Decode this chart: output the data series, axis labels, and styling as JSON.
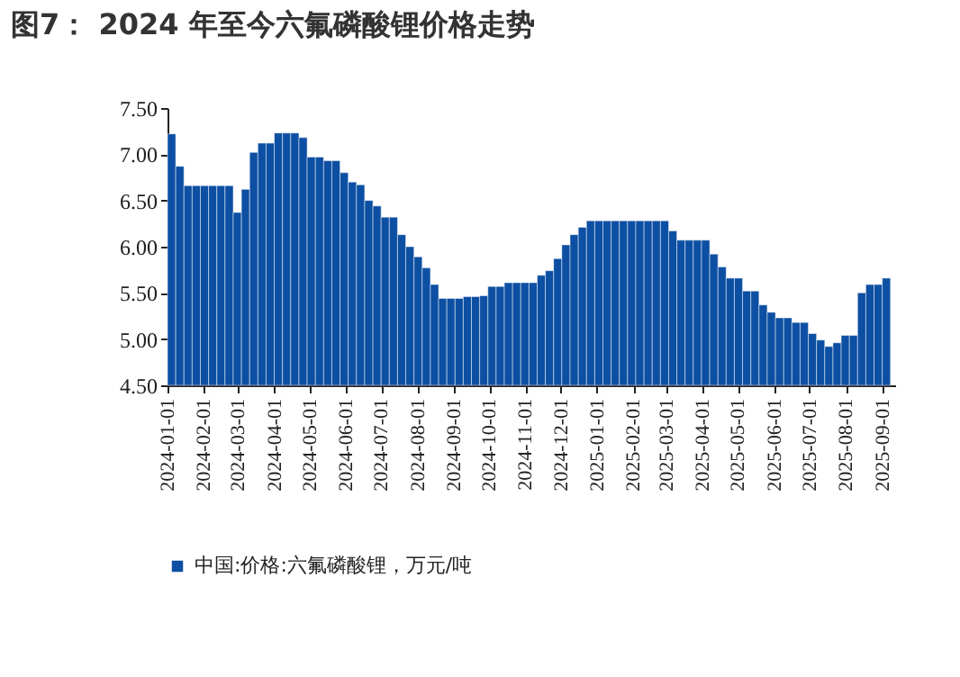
{
  "chart_data": {
    "type": "bar",
    "title": "图7： 2024 年至今六氟磷酸锂价格走势",
    "x": [
      "2024-01-01",
      "2024-01-08",
      "2024-01-15",
      "2024-01-22",
      "2024-01-29",
      "2024-02-05",
      "2024-02-12",
      "2024-02-19",
      "2024-02-26",
      "2024-03-04",
      "2024-03-11",
      "2024-03-18",
      "2024-03-25",
      "2024-04-01",
      "2024-04-08",
      "2024-04-15",
      "2024-04-22",
      "2024-04-29",
      "2024-05-06",
      "2024-05-13",
      "2024-05-20",
      "2024-05-27",
      "2024-06-03",
      "2024-06-10",
      "2024-06-17",
      "2024-06-24",
      "2024-07-01",
      "2024-07-08",
      "2024-07-15",
      "2024-07-22",
      "2024-07-29",
      "2024-08-05",
      "2024-08-12",
      "2024-08-19",
      "2024-08-26",
      "2024-09-02",
      "2024-09-09",
      "2024-09-16",
      "2024-09-23",
      "2024-09-30",
      "2024-10-07",
      "2024-10-14",
      "2024-10-21",
      "2024-10-28",
      "2024-11-04",
      "2024-11-11",
      "2024-11-18",
      "2024-11-25",
      "2024-12-02",
      "2024-12-09",
      "2024-12-16",
      "2024-12-23",
      "2024-12-30",
      "2025-01-06",
      "2025-01-13",
      "2025-01-20",
      "2025-01-27",
      "2025-02-03",
      "2025-02-10",
      "2025-02-17",
      "2025-02-24",
      "2025-03-03",
      "2025-03-10",
      "2025-03-17",
      "2025-03-24",
      "2025-03-31",
      "2025-04-07",
      "2025-04-14",
      "2025-04-21",
      "2025-04-28",
      "2025-05-05",
      "2025-05-12",
      "2025-05-19",
      "2025-05-26",
      "2025-06-02",
      "2025-06-09",
      "2025-06-16",
      "2025-06-23",
      "2025-06-30",
      "2025-07-07",
      "2025-07-14",
      "2025-07-21",
      "2025-07-28",
      "2025-08-04",
      "2025-08-11",
      "2025-08-18",
      "2025-08-25",
      "2025-09-01"
    ],
    "series": [
      {
        "name": "中国:价格:六氟磷酸锂，万元/吨",
        "color": "#0d4fa3",
        "values": [
          7.22,
          6.87,
          6.66,
          6.66,
          6.66,
          6.66,
          6.66,
          6.66,
          6.37,
          6.62,
          7.02,
          7.12,
          7.12,
          7.23,
          7.23,
          7.23,
          7.18,
          6.97,
          6.97,
          6.93,
          6.93,
          6.8,
          6.7,
          6.67,
          6.5,
          6.44,
          6.32,
          6.32,
          6.13,
          6.0,
          5.89,
          5.77,
          5.59,
          5.44,
          5.44,
          5.44,
          5.46,
          5.46,
          5.47,
          5.57,
          5.57,
          5.61,
          5.61,
          5.61,
          5.61,
          5.69,
          5.74,
          5.87,
          6.02,
          6.13,
          6.21,
          6.28,
          6.28,
          6.28,
          6.28,
          6.28,
          6.28,
          6.28,
          6.28,
          6.28,
          6.28,
          6.17,
          6.07,
          6.07,
          6.07,
          6.07,
          5.92,
          5.78,
          5.66,
          5.66,
          5.52,
          5.52,
          5.37,
          5.29,
          5.23,
          5.23,
          5.18,
          5.18,
          5.06,
          4.99,
          4.92,
          4.96,
          5.04,
          5.04,
          5.5,
          5.59,
          5.59,
          5.66
        ]
      }
    ],
    "xlim": [
      "2024-01-01",
      "2025-09-12"
    ],
    "xticks": [
      "2024-01-01",
      "2024-02-01",
      "2024-03-01",
      "2024-04-01",
      "2024-05-01",
      "2024-06-01",
      "2024-07-01",
      "2024-08-01",
      "2024-09-01",
      "2024-10-01",
      "2024-11-01",
      "2024-12-01",
      "2025-01-01",
      "2025-02-01",
      "2025-03-01",
      "2025-04-01",
      "2025-05-01",
      "2025-06-01",
      "2025-07-01",
      "2025-08-01",
      "2025-09-01"
    ],
    "ylim": [
      4.5,
      7.5
    ],
    "yticks": [
      {
        "value": 4.5,
        "label": "4.50"
      },
      {
        "value": 5,
        "label": "5.00"
      },
      {
        "value": 5.5,
        "label": "5.50"
      },
      {
        "value": 6,
        "label": "6.00"
      },
      {
        "value": 6.5,
        "label": "6.50"
      },
      {
        "value": 7,
        "label": "7.00"
      },
      {
        "value": 7.5,
        "label": "7.50"
      }
    ],
    "grid": false,
    "legend": "bottom"
  }
}
